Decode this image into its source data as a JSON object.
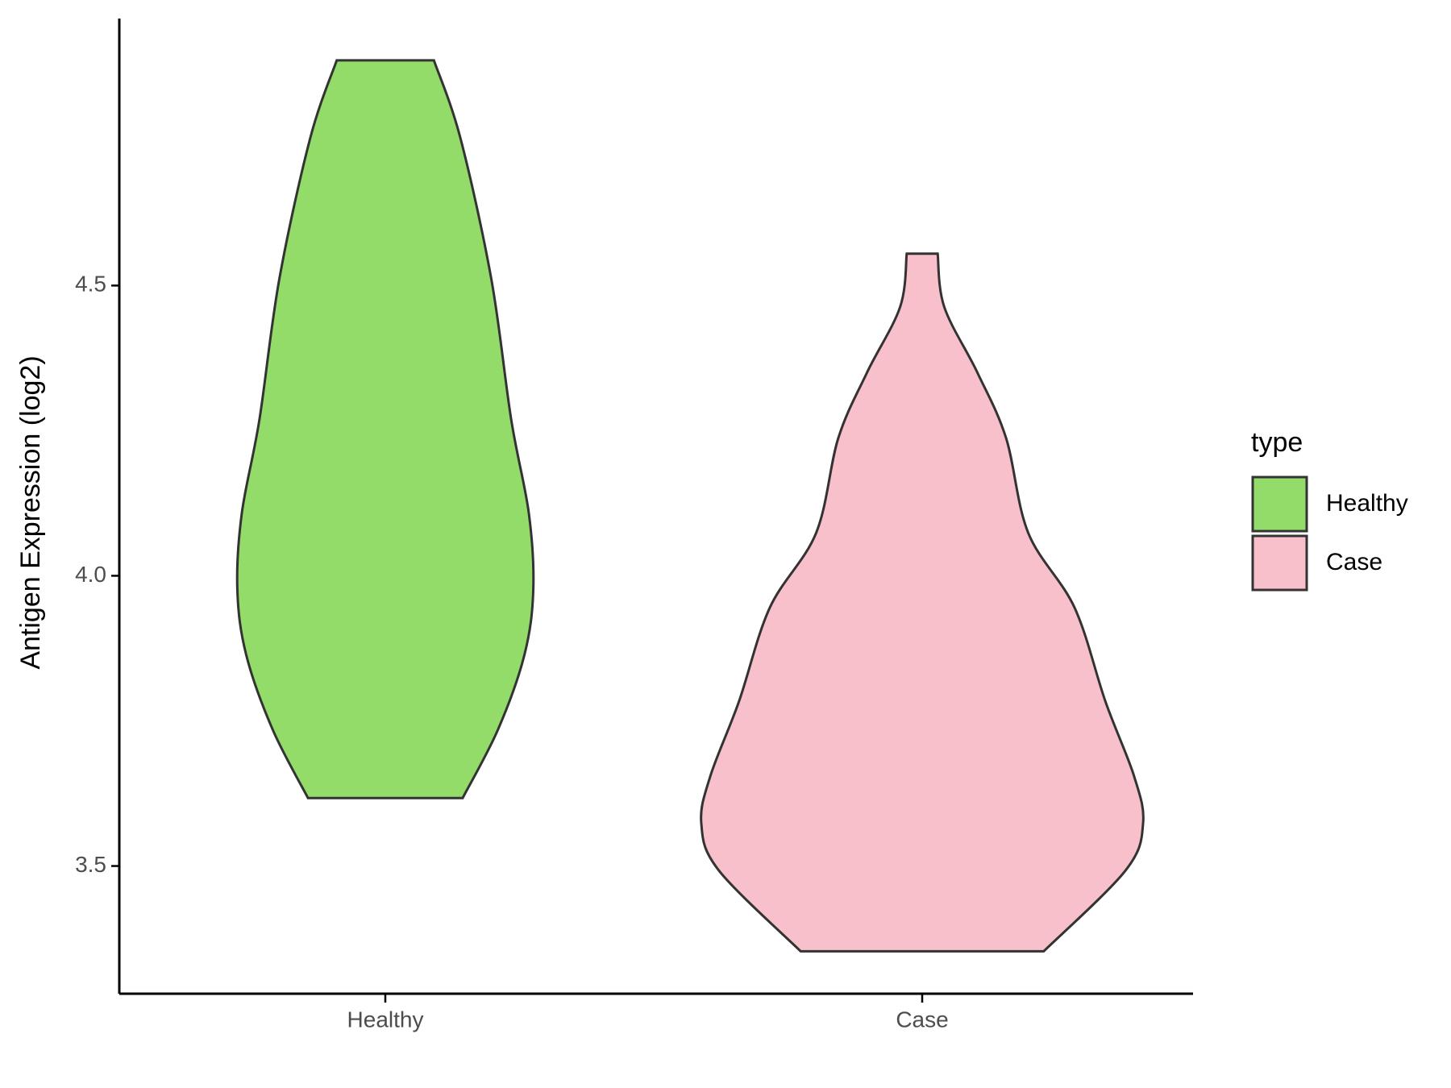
{
  "chart_data": {
    "type": "violin",
    "y_label": "Antigen Expression (log2)",
    "categories": [
      "Healthy",
      "Case"
    ],
    "ylim": [
      3.28,
      4.96
    ],
    "yticks": [
      3.5,
      {
        "value": 4,
        "label": "4.0"
      },
      4.5
    ],
    "legend_title": "type",
    "legend_position": "right",
    "series": [
      {
        "name": "Healthy",
        "color": "#93dc6a",
        "y": [
          3.617,
          3.735,
          3.864,
          3.977,
          4.107,
          4.269,
          4.511,
          4.754,
          4.888
        ],
        "density": [
          0.35,
          0.51,
          0.63,
          0.67,
          0.65,
          0.57,
          0.48,
          0.34,
          0.22
        ]
      },
      {
        "name": "Case",
        "color": "#f8c0cb",
        "y": [
          3.353,
          3.492,
          3.573,
          3.654,
          3.783,
          3.945,
          4.074,
          4.237,
          4.35,
          4.463,
          4.555
        ],
        "density": [
          0.55,
          0.92,
          1,
          0.96,
          0.83,
          0.69,
          0.48,
          0.38,
          0.25,
          0.1,
          0.07
        ]
      }
    ]
  }
}
